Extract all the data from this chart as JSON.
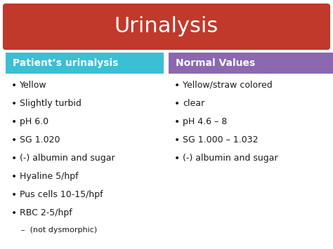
{
  "title": "Urinalysis",
  "title_bg": "#c0392b",
  "title_color": "#ffffff",
  "title_fontsize": 22,
  "left_header": "Patient’s urinalysis",
  "left_header_bg": "#3bbfd4",
  "left_header_color": "#ffffff",
  "right_header": "Normal Values",
  "right_header_bg": "#8b68b0",
  "right_header_color": "#ffffff",
  "header_fontsize": 10,
  "left_items": [
    "Yellow",
    "Slightly turbid",
    "pH 6.0",
    "SG 1.020",
    "(-) albumin and sugar",
    "Hyaline 5/hpf",
    "Pus cells 10-15/hpf",
    "RBC 2-5/hpf",
    "–  (not dysmorphic)"
  ],
  "right_items": [
    "Yellow/straw colored",
    "clear",
    "pH 4.6 – 8",
    "SG 1.000 – 1.032",
    "(-) albumin and sugar"
  ],
  "item_fontsize": 9,
  "sub_item_fontsize": 8,
  "bg_color": "#ffffff",
  "bullet": "•",
  "item_color": "#1a1a1a"
}
